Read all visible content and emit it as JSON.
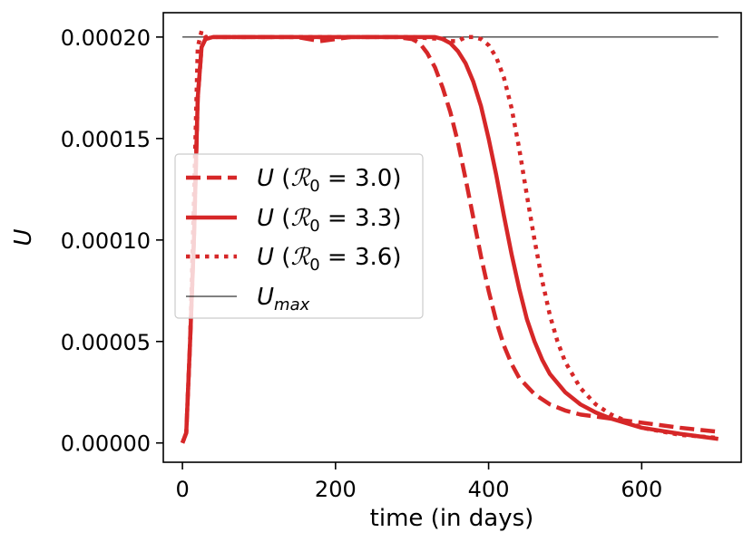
{
  "chart_data": {
    "type": "line",
    "xlabel": "time (in days)",
    "ylabel": "U",
    "xlim": [
      -25,
      730
    ],
    "ylim": [
      -9.5e-06,
      0.000212
    ],
    "xticks": [
      0,
      200,
      400,
      600
    ],
    "xtick_labels": [
      "0",
      "200",
      "400",
      "600"
    ],
    "yticks": [
      0.0,
      5e-05,
      0.0001,
      0.00015,
      0.0002
    ],
    "ytick_labels": [
      "0.00000",
      "0.00005",
      "0.00010",
      "0.00015",
      "0.00020"
    ],
    "grid": false,
    "legend_position": "center-left",
    "series": [
      {
        "name": "U (ℛ₀ = 3.0)",
        "legend_label": "U (R0 = 3.0)",
        "color": "#d62728",
        "style": "dashed",
        "x": [
          0,
          5,
          10,
          15,
          20,
          25,
          30,
          40,
          60,
          100,
          150,
          180,
          220,
          260,
          280,
          300,
          310,
          320,
          330,
          340,
          350,
          360,
          370,
          380,
          390,
          400,
          410,
          420,
          430,
          440,
          460,
          480,
          500,
          520,
          540,
          560,
          600,
          650,
          700
        ],
        "y": [
          0.0,
          5e-06,
          5e-05,
          0.0001,
          0.00017,
          0.000195,
          0.000199,
          0.0002,
          0.0002,
          0.0002,
          0.0002,
          0.000198,
          0.0002,
          0.0002,
          0.0002,
          0.000199,
          0.000197,
          0.000192,
          0.000185,
          0.000175,
          0.000163,
          0.000148,
          0.00013,
          0.000111,
          9.2e-05,
          7.5e-05,
          6e-05,
          4.8e-05,
          3.9e-05,
          3.2e-05,
          2.4e-05,
          1.9e-05,
          1.6e-05,
          1.4e-05,
          1.3e-05,
          1.2e-05,
          1e-05,
          7.5e-06,
          5.5e-06
        ]
      },
      {
        "name": "U (ℛ₀ = 3.3)",
        "legend_label": "U (R0 = 3.3)",
        "color": "#d62728",
        "style": "solid",
        "x": [
          0,
          5,
          10,
          15,
          20,
          25,
          30,
          40,
          60,
          100,
          200,
          300,
          320,
          330,
          340,
          350,
          360,
          370,
          380,
          390,
          400,
          410,
          420,
          430,
          440,
          450,
          460,
          470,
          480,
          500,
          520,
          540,
          560,
          600,
          650,
          700
        ],
        "y": [
          0.0,
          5e-06,
          5e-05,
          0.0001,
          0.00017,
          0.000195,
          0.000199,
          0.0002,
          0.0002,
          0.0002,
          0.0002,
          0.0002,
          0.0002,
          0.0002,
          0.000199,
          0.000197,
          0.000193,
          0.000187,
          0.000178,
          0.000166,
          0.00015,
          0.000132,
          0.000112,
          9.3e-05,
          7.6e-05,
          6.1e-05,
          5e-05,
          4.1e-05,
          3.4e-05,
          2.5e-05,
          1.9e-05,
          1.5e-05,
          1.2e-05,
          7.5e-06,
          4.5e-06,
          2e-06
        ]
      },
      {
        "name": "U (ℛ₀ = 3.6)",
        "legend_label": "U (R0 = 3.6)",
        "color": "#d62728",
        "style": "dotted",
        "x": [
          0,
          5,
          10,
          15,
          20,
          25,
          30,
          40,
          60,
          100,
          200,
          300,
          340,
          350,
          360,
          370,
          380,
          390,
          400,
          410,
          420,
          430,
          440,
          450,
          460,
          470,
          480,
          490,
          500,
          520,
          540,
          560,
          600,
          650,
          700
        ],
        "y": [
          0.0,
          5e-06,
          5e-05,
          0.00012,
          0.000195,
          0.000203,
          0.0002,
          0.0002,
          0.0002,
          0.0002,
          0.0002,
          0.0002,
          0.000199,
          0.000198,
          0.000198,
          0.0002,
          0.0002,
          0.000199,
          0.000196,
          0.00019,
          0.00018,
          0.000165,
          0.000145,
          0.000122,
          0.0001,
          8e-05,
          6.3e-05,
          5e-05,
          4e-05,
          2.7e-05,
          1.9e-05,
          1.4e-05,
          7.5e-06,
          4e-06,
          2.5e-06
        ]
      },
      {
        "name": "U_max",
        "legend_label": "Umax",
        "color": "#000000",
        "style": "thin",
        "x": [
          0,
          700
        ],
        "y": [
          0.0002,
          0.0002
        ]
      }
    ]
  }
}
